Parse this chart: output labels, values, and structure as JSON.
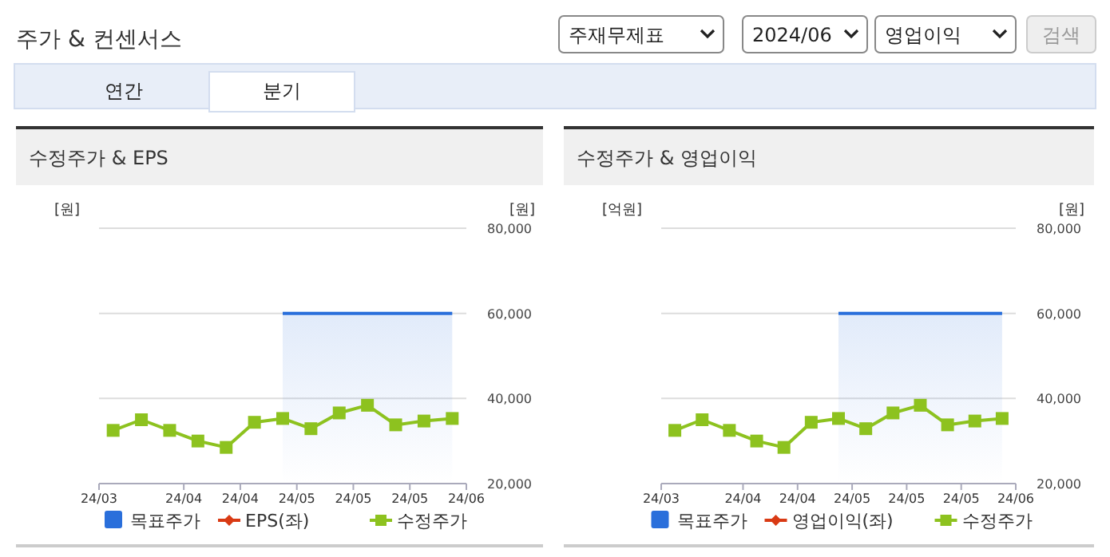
{
  "chart_data": [
    {
      "type": "other",
      "title": "주가 & 컨센서스",
      "annotations": [
        "주재무제표",
        "2024/06",
        "영업이익",
        "검색",
        "연간",
        "분기"
      ]
    },
    {
      "type": "line",
      "title": "수정주가 & EPS",
      "ylabel": "[원]",
      "y2label": "[원]",
      "x": [
        "2024-03-17T12:00",
        "2024-03-24T12:00",
        "2024-03-31T12:00",
        "2024-04-07T12:00",
        "2024-04-14T12:00",
        "2024-04-21T12:00",
        "2024-04-28T12:00",
        "2024-05-05T12:00",
        "2024-05-12T12:00",
        "2024-05-19T12:00",
        "2024-05-26T12:00",
        "2024-06-02T12:00",
        "2024-06-09T12:00"
      ],
      "xlim": [
        "2024-03-14",
        "2024-06-13"
      ],
      "xticks": [
        {
          "value": "2024-03-14",
          "label": "24/03"
        },
        {
          "value": "2024-04-04",
          "label": "24/04"
        },
        {
          "value": "2024-04-18",
          "label": "24/04"
        },
        {
          "value": "2024-05-02",
          "label": "24/05"
        },
        {
          "value": "2024-05-16",
          "label": "24/05"
        },
        {
          "value": "2024-05-30",
          "label": "24/05"
        },
        {
          "value": "2024-06-13",
          "label": "24/06"
        }
      ],
      "y2lim": [
        20000,
        80000
      ],
      "y2ticks": [
        {
          "value": 20000,
          "label": "20,000"
        },
        {
          "value": 40000,
          "label": "40,000"
        },
        {
          "value": 60000,
          "label": "60,000"
        },
        {
          "value": 80000,
          "label": "80,000"
        }
      ],
      "grid": "y",
      "legend": "bottom",
      "series": [
        {
          "name": "목표주가",
          "type": "area",
          "axis": "y2",
          "color": "#2a6fdb",
          "values": [
            null,
            null,
            null,
            null,
            null,
            null,
            60000,
            60000,
            60000,
            60000,
            60000,
            60000,
            60000
          ]
        },
        {
          "name": "EPS(좌)",
          "type": "line",
          "marker": "diamond",
          "color": "#d93a14",
          "values": [
            null,
            null,
            null,
            null,
            null,
            null,
            null,
            null,
            null,
            null,
            null,
            null,
            null
          ]
        },
        {
          "name": "수정주가",
          "type": "line",
          "axis": "y2",
          "marker": "square",
          "color": "#8dc21f",
          "values": [
            32500,
            35000,
            32500,
            30000,
            28500,
            34400,
            35300,
            32900,
            36600,
            38400,
            33800,
            34700,
            35300
          ]
        }
      ]
    },
    {
      "type": "line",
      "title": "수정주가 & 영업이익",
      "ylabel": "[억원]",
      "y2label": "[원]",
      "x": [
        "2024-03-17T12:00",
        "2024-03-24T12:00",
        "2024-03-31T12:00",
        "2024-04-07T12:00",
        "2024-04-14T12:00",
        "2024-04-21T12:00",
        "2024-04-28T12:00",
        "2024-05-05T12:00",
        "2024-05-12T12:00",
        "2024-05-19T12:00",
        "2024-05-26T12:00",
        "2024-06-02T12:00",
        "2024-06-09T12:00"
      ],
      "xlim": [
        "2024-03-14",
        "2024-06-13"
      ],
      "xticks": [
        {
          "value": "2024-03-14",
          "label": "24/03"
        },
        {
          "value": "2024-04-04",
          "label": "24/04"
        },
        {
          "value": "2024-04-18",
          "label": "24/04"
        },
        {
          "value": "2024-05-02",
          "label": "24/05"
        },
        {
          "value": "2024-05-16",
          "label": "24/05"
        },
        {
          "value": "2024-05-30",
          "label": "24/05"
        },
        {
          "value": "2024-06-13",
          "label": "24/06"
        }
      ],
      "y2lim": [
        20000,
        80000
      ],
      "y2ticks": [
        {
          "value": 20000,
          "label": "20,000"
        },
        {
          "value": 40000,
          "label": "40,000"
        },
        {
          "value": 60000,
          "label": "60,000"
        },
        {
          "value": 80000,
          "label": "80,000"
        }
      ],
      "grid": "y",
      "legend": "bottom",
      "series": [
        {
          "name": "목표주가",
          "type": "area",
          "axis": "y2",
          "color": "#2a6fdb",
          "values": [
            null,
            null,
            null,
            null,
            null,
            null,
            60000,
            60000,
            60000,
            60000,
            60000,
            60000,
            60000
          ]
        },
        {
          "name": "영업이익(좌)",
          "type": "line",
          "marker": "diamond",
          "color": "#d93a14",
          "values": [
            null,
            null,
            null,
            null,
            null,
            null,
            null,
            null,
            null,
            null,
            null,
            null,
            null
          ]
        },
        {
          "name": "수정주가",
          "type": "line",
          "axis": "y2",
          "marker": "square",
          "color": "#8dc21f",
          "values": [
            32500,
            35000,
            32500,
            30000,
            28500,
            34400,
            35300,
            32900,
            36600,
            38400,
            33800,
            34700,
            35300
          ]
        }
      ]
    }
  ]
}
